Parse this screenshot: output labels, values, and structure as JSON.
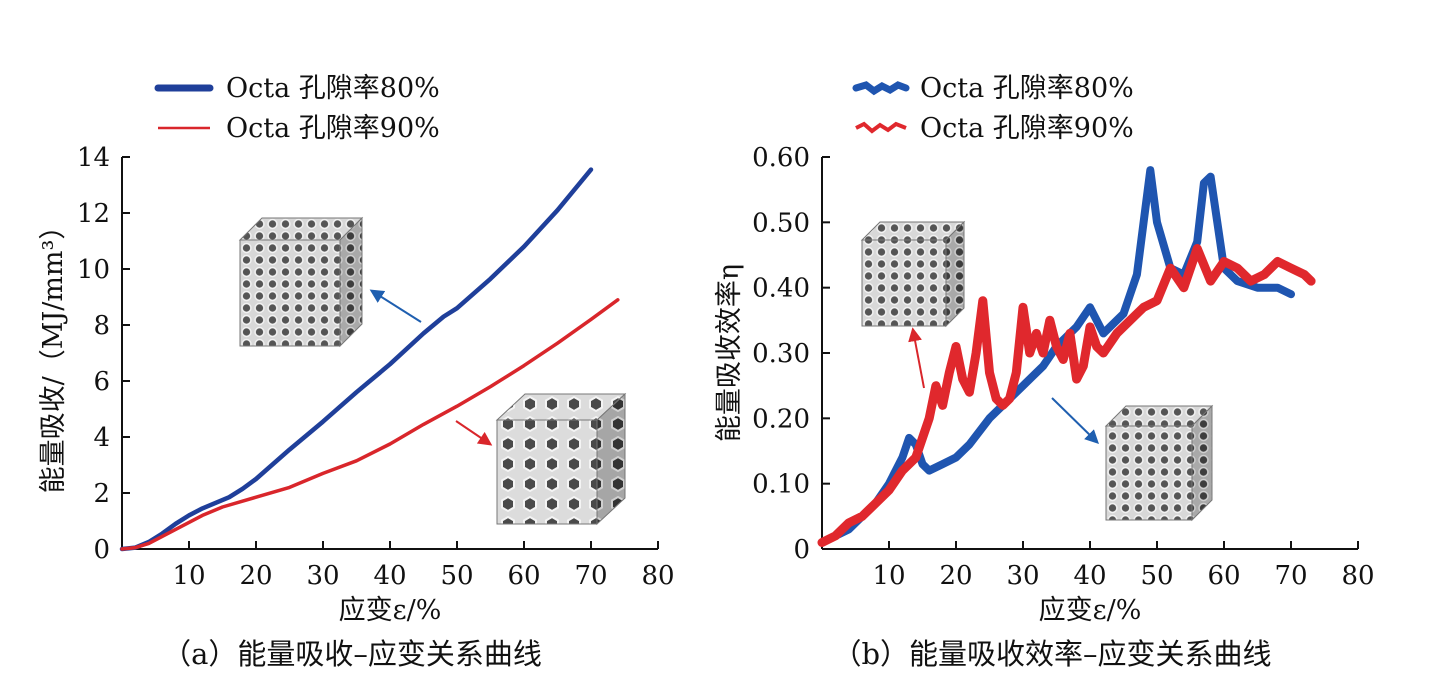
{
  "chart_data": [
    {
      "type": "line",
      "caption": "（a）能量吸收–应变关系曲线",
      "xlabel": "应变ε/%",
      "ylabel": "能量吸收/（MJ/mm³）",
      "xlim": [
        0,
        80
      ],
      "ylim": [
        0,
        14
      ],
      "x_ticks": [
        "10",
        "20",
        "30",
        "40",
        "50",
        "60",
        "70",
        "80"
      ],
      "y_ticks": [
        "0",
        "2",
        "4",
        "6",
        "8",
        "10",
        "12",
        "14"
      ],
      "legend_position": "top-left",
      "grid": false,
      "series": [
        {
          "name": "Octa 孔隙率80%",
          "color": "#1f3f9a",
          "x": [
            0,
            2,
            4,
            6,
            8,
            10,
            12,
            14,
            16,
            18,
            20,
            25,
            30,
            35,
            40,
            45,
            48,
            50,
            55,
            60,
            65,
            70
          ],
          "y": [
            0,
            0.05,
            0.25,
            0.55,
            0.9,
            1.2,
            1.45,
            1.65,
            1.85,
            2.15,
            2.5,
            3.55,
            4.55,
            5.6,
            6.6,
            7.7,
            8.3,
            8.6,
            9.65,
            10.8,
            12.1,
            13.55
          ]
        },
        {
          "name": "Octa 孔隙率90%",
          "color": "#d9262b",
          "x": [
            0,
            2,
            4,
            6,
            8,
            10,
            12,
            15,
            20,
            25,
            30,
            35,
            40,
            45,
            50,
            55,
            60,
            65,
            70,
            74
          ],
          "y": [
            0,
            0.05,
            0.2,
            0.45,
            0.7,
            0.95,
            1.2,
            1.5,
            1.85,
            2.2,
            2.7,
            3.15,
            3.75,
            4.45,
            5.1,
            5.8,
            6.55,
            7.35,
            8.2,
            8.9
          ]
        }
      ],
      "annotations": [
        "lattice-cube-80",
        "lattice-cube-90"
      ]
    },
    {
      "type": "line",
      "caption": "（b）能量吸收效率–应变关系曲线",
      "xlabel": "应变ε/%",
      "ylabel": "能量吸收效率η",
      "xlim": [
        0,
        80
      ],
      "ylim": [
        0,
        0.6
      ],
      "x_ticks": [
        "10",
        "20",
        "30",
        "40",
        "50",
        "60",
        "70",
        "80"
      ],
      "y_ticks": [
        "0",
        "0.10",
        "0.20",
        "0.30",
        "0.40",
        "0.50",
        "0.60"
      ],
      "legend_position": "top-left",
      "grid": false,
      "series": [
        {
          "name": "Octa 孔隙率80%",
          "color": "#1f55b0",
          "x": [
            0,
            2,
            4,
            6,
            8,
            10,
            12,
            13,
            14,
            15,
            16,
            18,
            20,
            22,
            25,
            28,
            30,
            33,
            35,
            38,
            40,
            42,
            45,
            47,
            48,
            49,
            50,
            52,
            54,
            56,
            57,
            58,
            59,
            60,
            62,
            65,
            68,
            70
          ],
          "y": [
            0.01,
            0.02,
            0.03,
            0.05,
            0.07,
            0.1,
            0.14,
            0.17,
            0.16,
            0.13,
            0.12,
            0.13,
            0.14,
            0.16,
            0.2,
            0.23,
            0.25,
            0.28,
            0.31,
            0.34,
            0.37,
            0.33,
            0.36,
            0.42,
            0.5,
            0.58,
            0.5,
            0.43,
            0.42,
            0.47,
            0.56,
            0.57,
            0.5,
            0.43,
            0.41,
            0.4,
            0.4,
            0.39
          ]
        },
        {
          "name": "Octa 孔隙率90%",
          "color": "#e0282d",
          "x": [
            0,
            2,
            4,
            6,
            8,
            10,
            12,
            14,
            15,
            16,
            17,
            18,
            19,
            20,
            21,
            22,
            23,
            24,
            25,
            26,
            27,
            28,
            29,
            30,
            31,
            32,
            33,
            34,
            35,
            36,
            37,
            38,
            39,
            40,
            41,
            42,
            44,
            46,
            48,
            50,
            52,
            54,
            56,
            58,
            60,
            62,
            64,
            66,
            68,
            70,
            72,
            73
          ],
          "y": [
            0.01,
            0.02,
            0.04,
            0.05,
            0.07,
            0.09,
            0.12,
            0.14,
            0.17,
            0.2,
            0.25,
            0.22,
            0.27,
            0.31,
            0.26,
            0.24,
            0.3,
            0.38,
            0.27,
            0.23,
            0.22,
            0.23,
            0.27,
            0.37,
            0.3,
            0.33,
            0.3,
            0.35,
            0.31,
            0.29,
            0.33,
            0.26,
            0.28,
            0.34,
            0.31,
            0.3,
            0.33,
            0.35,
            0.37,
            0.38,
            0.43,
            0.4,
            0.46,
            0.41,
            0.44,
            0.43,
            0.41,
            0.42,
            0.44,
            0.43,
            0.42,
            0.41
          ]
        }
      ],
      "annotations": [
        "lattice-cube-90",
        "lattice-cube-80"
      ]
    }
  ]
}
